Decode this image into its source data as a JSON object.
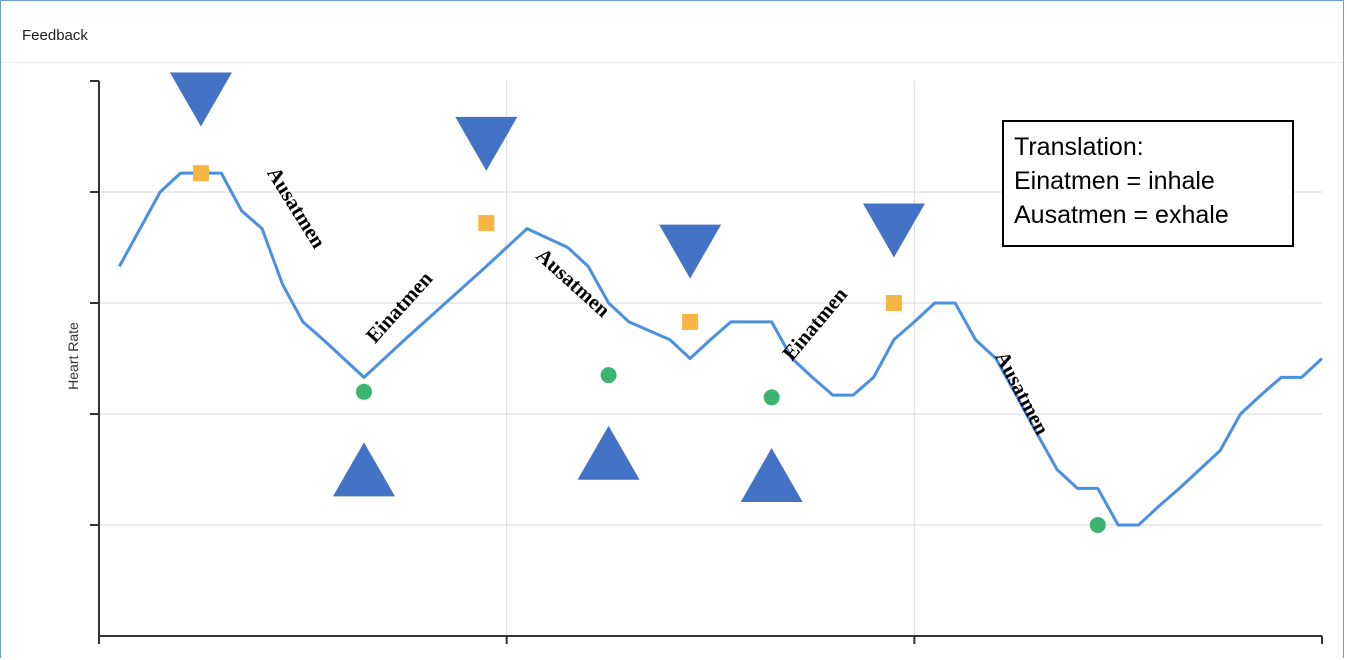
{
  "window": {
    "title": "Feedback"
  },
  "translation": {
    "heading": "Translation:",
    "line1": "Einatmen = inhale",
    "line2": "Ausatmen = exhale"
  },
  "colors": {
    "line": "#4a90e2",
    "peak_marker": "#f7b643",
    "trough_marker": "#3cb371",
    "arrow": "#4472c4",
    "grid": "#d9d9d9",
    "axis": "#333333"
  },
  "chart_data": {
    "type": "line",
    "title": "",
    "xlabel": "",
    "ylabel": "Heart Rate",
    "xlim": [
      0,
      30
    ],
    "ylim": [
      0,
      5
    ],
    "grid": true,
    "x_gridlines": [
      10,
      20
    ],
    "y_gridlines": [
      1,
      2,
      3,
      4
    ],
    "series": [
      {
        "values": [
          3.33,
          4.0,
          4.17,
          4.17,
          4.17,
          3.83,
          3.67,
          3.17,
          2.83,
          2.67,
          2.5,
          2.33,
          2.67,
          3.0,
          3.33,
          3.5,
          3.67,
          3.5,
          3.33,
          3.0,
          2.83,
          2.67,
          2.5,
          2.67,
          2.83,
          2.83,
          2.5,
          2.33,
          2.17,
          2.17,
          2.33,
          2.67,
          2.83,
          3.0,
          3.0,
          2.67,
          2.5,
          2.17,
          1.83,
          1.5,
          1.33,
          1.33,
          1.0,
          1.0,
          1.17,
          1.33,
          1.5,
          1.67,
          2.0,
          2.17,
          2.33,
          2.33,
          2.5
        ],
        "x": [
          0.5,
          1.5,
          2.0,
          2.5,
          3.0,
          3.5,
          4.0,
          4.5,
          5.0,
          5.5,
          6.0,
          6.5,
          7.5,
          8.5,
          9.5,
          10.0,
          10.5,
          11.5,
          12.0,
          12.5,
          13.0,
          14.0,
          14.5,
          15.0,
          15.5,
          16.5,
          17.0,
          17.5,
          18.0,
          18.5,
          19.0,
          19.5,
          20.0,
          20.5,
          21.0,
          21.5,
          22.0,
          22.5,
          23.0,
          23.5,
          24.0,
          24.5,
          25.0,
          25.5,
          26.0,
          26.5,
          27.0,
          27.5,
          28.0,
          28.5,
          29.0,
          29.5,
          30.0
        ]
      }
    ],
    "peaks": [
      {
        "x": 2.5,
        "y": 4.17
      },
      {
        "x": 9.5,
        "y": 3.72
      },
      {
        "x": 14.5,
        "y": 2.83
      },
      {
        "x": 19.5,
        "y": 3.0
      }
    ],
    "troughs": [
      {
        "x": 6.5,
        "y": 2.2
      },
      {
        "x": 12.5,
        "y": 2.35
      },
      {
        "x": 16.5,
        "y": 2.15
      },
      {
        "x": 24.5,
        "y": 1.0
      }
    ],
    "down_arrows": [
      {
        "x": 2.5,
        "level": 4.5
      },
      {
        "x": 9.5,
        "level": 4.1
      },
      {
        "x": 14.5,
        "level": 3.13
      },
      {
        "x": 19.5,
        "level": 3.32
      }
    ],
    "up_arrows": [
      {
        "x": 6.5,
        "level": 1.6
      },
      {
        "x": 12.5,
        "level": 1.75
      },
      {
        "x": 16.5,
        "level": 1.55
      }
    ],
    "annotations": [
      {
        "text": "Ausatmen",
        "x": 4.8,
        "y": 3.85,
        "rotation": 58
      },
      {
        "text": "Einatmen",
        "x": 7.4,
        "y": 2.95,
        "rotation": -48
      },
      {
        "text": "Ausatmen",
        "x": 11.6,
        "y": 3.17,
        "rotation": 42
      },
      {
        "text": "Einatmen",
        "x": 17.6,
        "y": 2.8,
        "rotation": -50
      },
      {
        "text": "Ausatmen",
        "x": 22.6,
        "y": 2.18,
        "rotation": 62
      }
    ]
  }
}
